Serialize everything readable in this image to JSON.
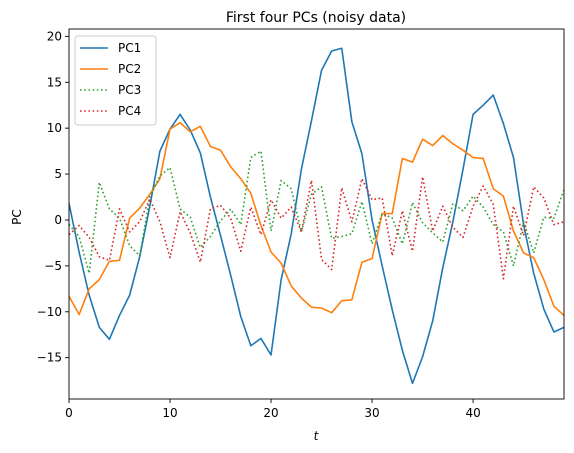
{
  "chart_data": {
    "type": "line",
    "title": "First four PCs (noisy data)",
    "xlabel": "t",
    "ylabel": "PC",
    "xlim": [
      0,
      49
    ],
    "ylim": [
      -19.5,
      20.8
    ],
    "xticks": [
      0,
      10,
      20,
      30,
      40
    ],
    "yticks": [
      -15,
      -10,
      -5,
      0,
      5,
      10,
      15,
      20
    ],
    "legend": "top-left",
    "grid": false,
    "x": [
      0,
      1,
      2,
      3,
      4,
      5,
      6,
      7,
      8,
      9,
      10,
      11,
      12,
      13,
      14,
      15,
      16,
      17,
      18,
      19,
      20,
      21,
      22,
      23,
      24,
      25,
      26,
      27,
      28,
      29,
      30,
      31,
      32,
      33,
      34,
      35,
      36,
      37,
      38,
      39,
      40,
      41,
      42,
      43,
      44,
      45,
      46,
      47,
      48,
      49
    ],
    "series": [
      {
        "name": "PC1",
        "color": "#1f77b4",
        "dash": "solid",
        "values": [
          1.8,
          -3.5,
          -8.2,
          -11.7,
          -13.0,
          -10.4,
          -8.2,
          -4.0,
          1.5,
          7.5,
          9.9,
          11.5,
          9.8,
          7.3,
          2.5,
          -1.7,
          -6.0,
          -10.5,
          -13.7,
          -12.9,
          -14.7,
          -6.5,
          -1.5,
          5.5,
          10.8,
          16.3,
          18.4,
          18.7,
          10.7,
          7.2,
          0.0,
          -5.0,
          -9.8,
          -14.2,
          -17.8,
          -14.9,
          -11.0,
          -5.2,
          -0.2,
          5.5,
          11.5,
          12.5,
          13.6,
          10.5,
          6.8,
          -0.5,
          -5.8,
          -9.7,
          -12.2,
          -11.7
        ]
      },
      {
        "name": "PC2",
        "color": "#ff7f0e",
        "dash": "solid",
        "values": [
          -8.3,
          -10.3,
          -7.5,
          -6.5,
          -4.5,
          -4.4,
          0.2,
          1.3,
          2.8,
          4.5,
          9.9,
          10.6,
          9.6,
          10.2,
          8.0,
          7.6,
          5.8,
          4.5,
          2.9,
          -0.6,
          -3.5,
          -4.7,
          -7.2,
          -8.5,
          -9.5,
          -9.6,
          -10.1,
          -8.8,
          -8.7,
          -4.6,
          -4.2,
          0.7,
          0.7,
          6.7,
          6.3,
          8.8,
          8.1,
          9.2,
          8.3,
          7.6,
          6.8,
          6.7,
          3.4,
          2.6,
          -1.2,
          -3.6,
          -4.1,
          -6.5,
          -9.4,
          -10.4
        ]
      },
      {
        "name": "PC3",
        "color": "#2ca02c",
        "dash": "dotted",
        "values": [
          -0.5,
          -1.8,
          -5.8,
          4.1,
          1.2,
          0.2,
          -2.8,
          -3.9,
          2.5,
          4.8,
          5.7,
          1.2,
          0.3,
          -3.0,
          -1.8,
          -0.1,
          1.2,
          -0.5,
          6.8,
          7.5,
          -1.2,
          4.3,
          3.4,
          -1.3,
          2.8,
          3.6,
          -2.0,
          -1.8,
          -1.5,
          2.0,
          -2.6,
          0.7,
          0.2,
          -2.6,
          1.9,
          -0.3,
          -1.4,
          -2.4,
          1.8,
          1.0,
          2.6,
          1.4,
          -0.5,
          -1.3,
          -5.0,
          -0.2,
          -3.6,
          0.3,
          0.2,
          3.3
        ]
      },
      {
        "name": "PC4",
        "color": "#d62728",
        "dash": "dotted",
        "values": [
          -1.6,
          -0.6,
          -1.9,
          -4.0,
          -4.4,
          1.2,
          -1.3,
          -0.2,
          2.3,
          -0.2,
          -4.1,
          0.9,
          -1.4,
          -4.6,
          1.2,
          1.6,
          0.2,
          -3.4,
          1.4,
          -1.6,
          2.2,
          0.2,
          1.4,
          -1.3,
          4.3,
          -4.3,
          -5.4,
          3.5,
          -0.2,
          4.5,
          2.2,
          2.4,
          -3.9,
          1.0,
          -3.4,
          4.7,
          -1.2,
          1.5,
          -0.8,
          -1.9,
          1.5,
          3.7,
          1.7,
          -6.4,
          1.5,
          -1.7,
          3.6,
          2.4,
          -0.5,
          -0.2
        ]
      }
    ]
  }
}
